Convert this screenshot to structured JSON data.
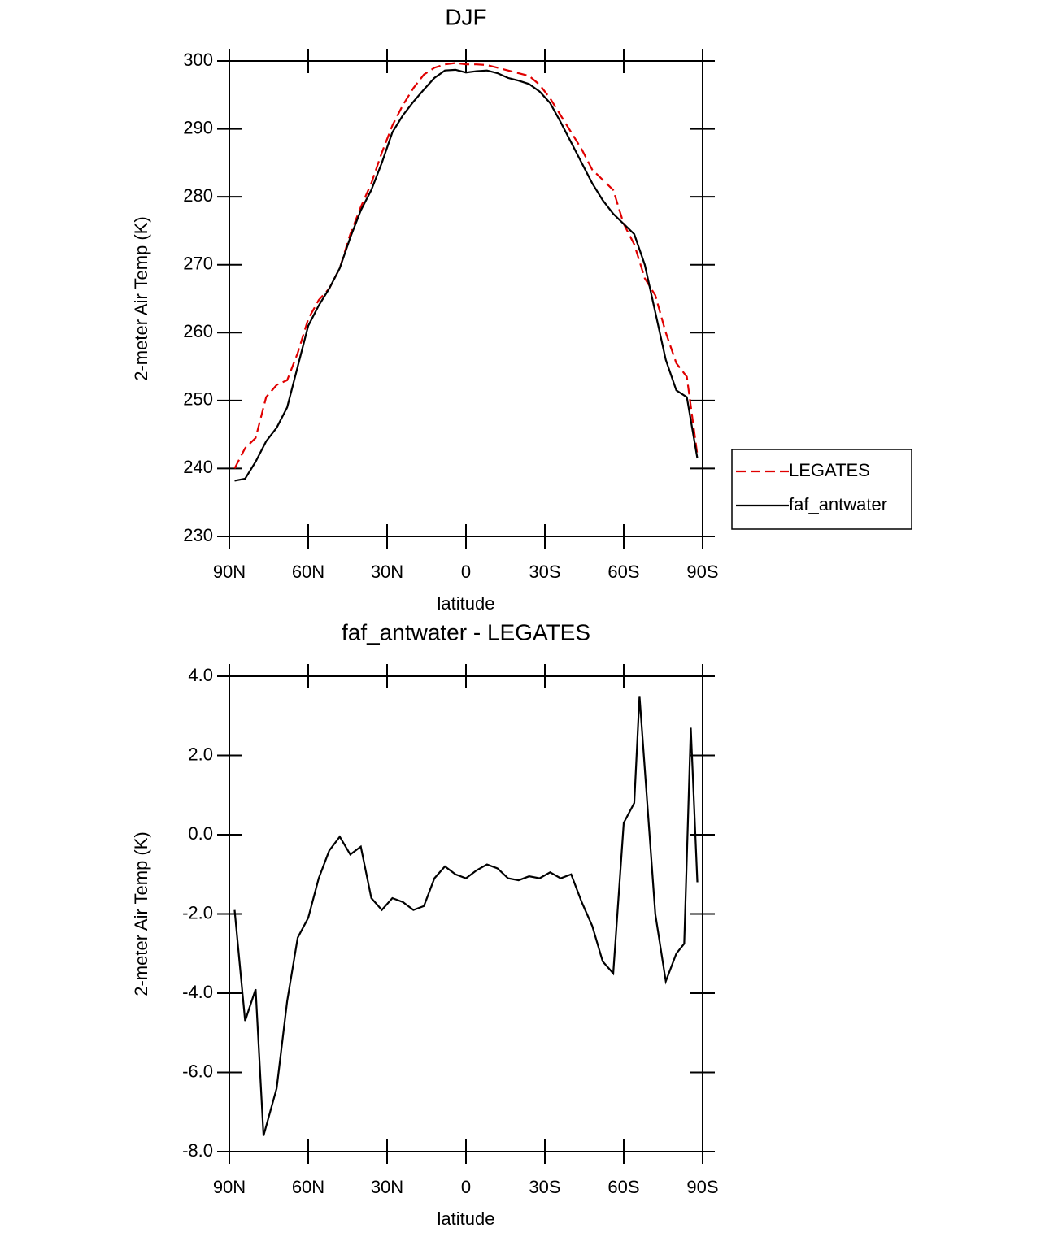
{
  "chart_data": [
    {
      "type": "line",
      "title": "DJF",
      "xlabel": "latitude",
      "ylabel": "2-meter Air Temp (K)",
      "x": [
        88,
        84,
        80,
        76,
        72,
        68,
        64,
        60,
        56,
        52,
        48,
        44,
        40,
        36,
        32,
        28,
        24,
        20,
        16,
        12,
        8,
        4,
        0,
        -4,
        -8,
        -12,
        -16,
        -20,
        -24,
        -28,
        -32,
        -36,
        -40,
        -44,
        -48,
        -52,
        -56,
        -60,
        -64,
        -68,
        -72,
        -76,
        -80,
        -84,
        -88
      ],
      "series": [
        {
          "name": "LEGATES",
          "color": "#e00000",
          "dash": true,
          "values": [
            240,
            243,
            244.5,
            250.5,
            252.3,
            253,
            257,
            262,
            264.8,
            266.5,
            269.5,
            274.5,
            278.5,
            282,
            286.5,
            290.5,
            293.5,
            296,
            298,
            299,
            299.5,
            299.7,
            299.5,
            299.5,
            299.4,
            299,
            298.6,
            298.2,
            297.8,
            296.5,
            294.5,
            292,
            289.5,
            287,
            284,
            282.5,
            281,
            276,
            273,
            268,
            265.5,
            260,
            255.5,
            253.5,
            242
          ]
        },
        {
          "name": "faf_antwater",
          "color": "#000000",
          "dash": false,
          "values": [
            238.2,
            238.5,
            241,
            244,
            246,
            249,
            255,
            261,
            264,
            266.5,
            269.5,
            274,
            278,
            281,
            285,
            289.5,
            292,
            294,
            295.8,
            297.5,
            298.6,
            298.7,
            298.3,
            298.5,
            298.6,
            298.2,
            297.5,
            297.1,
            296.6,
            295.5,
            293.8,
            291,
            288,
            285,
            282,
            279.5,
            277.5,
            276,
            274.5,
            270,
            263,
            256,
            251.5,
            250.5,
            241.5
          ]
        }
      ],
      "xlim": [
        90,
        -90
      ],
      "xticks": [
        {
          "value": 90,
          "label": "90N"
        },
        {
          "value": 60,
          "label": "60N"
        },
        {
          "value": 30,
          "label": "30N"
        },
        0,
        {
          "value": -30,
          "label": "30S"
        },
        {
          "value": -60,
          "label": "60S"
        },
        {
          "value": -90,
          "label": "90S"
        }
      ],
      "ylim": [
        230,
        300
      ],
      "yticks": [
        230,
        240,
        250,
        260,
        270,
        280,
        290,
        300
      ],
      "legend": "right"
    },
    {
      "type": "line",
      "title": "faf_antwater - LEGATES",
      "xlabel": "latitude",
      "ylabel": "2-meter Air Temp (K)",
      "x": [
        88,
        84,
        80,
        77,
        72,
        68,
        64,
        60,
        56,
        52,
        48,
        44,
        40,
        36,
        32,
        28,
        24,
        20,
        16,
        12,
        8,
        4,
        0,
        -4,
        -8,
        -12,
        -16,
        -20,
        -24,
        -28,
        -32,
        -36,
        -40,
        -44,
        -48,
        -52,
        -56,
        -60,
        -64,
        -66,
        -72,
        -76,
        -80,
        -83,
        -85.5,
        -88
      ],
      "series": [
        {
          "name": "faf_antwater - LEGATES",
          "color": "#000000",
          "dash": false,
          "values": [
            -1.9,
            -4.7,
            -3.9,
            -7.6,
            -6.4,
            -4.2,
            -2.6,
            -2.1,
            -1.1,
            -0.4,
            -0.05,
            -0.5,
            -0.3,
            -1.6,
            -1.9,
            -1.6,
            -1.7,
            -1.9,
            -1.8,
            -1.1,
            -0.8,
            -1.0,
            -1.1,
            -0.9,
            -0.75,
            -0.85,
            -1.1,
            -1.15,
            -1.05,
            -1.1,
            -0.95,
            -1.1,
            -1.0,
            -1.7,
            -2.3,
            -3.2,
            -3.5,
            0.3,
            0.8,
            3.5,
            -2.0,
            -3.7,
            -3.0,
            -2.75,
            2.7,
            -1.2
          ]
        }
      ],
      "xlim": [
        90,
        -90
      ],
      "xticks": [
        {
          "value": 90,
          "label": "90N"
        },
        {
          "value": 60,
          "label": "60N"
        },
        {
          "value": 30,
          "label": "30N"
        },
        0,
        {
          "value": -30,
          "label": "30S"
        },
        {
          "value": -60,
          "label": "60S"
        },
        {
          "value": -90,
          "label": "90S"
        }
      ],
      "ylim": [
        -8,
        4
      ],
      "yticks": [
        {
          "value": -8,
          "label": "-8.0"
        },
        {
          "value": -6,
          "label": "-6.0"
        },
        {
          "value": -4,
          "label": "-4.0"
        },
        {
          "value": -2,
          "label": "-2.0"
        },
        {
          "value": 0,
          "label": "0.0"
        },
        {
          "value": 2,
          "label": "2.0"
        },
        {
          "value": 4,
          "label": "4.0"
        }
      ]
    }
  ]
}
